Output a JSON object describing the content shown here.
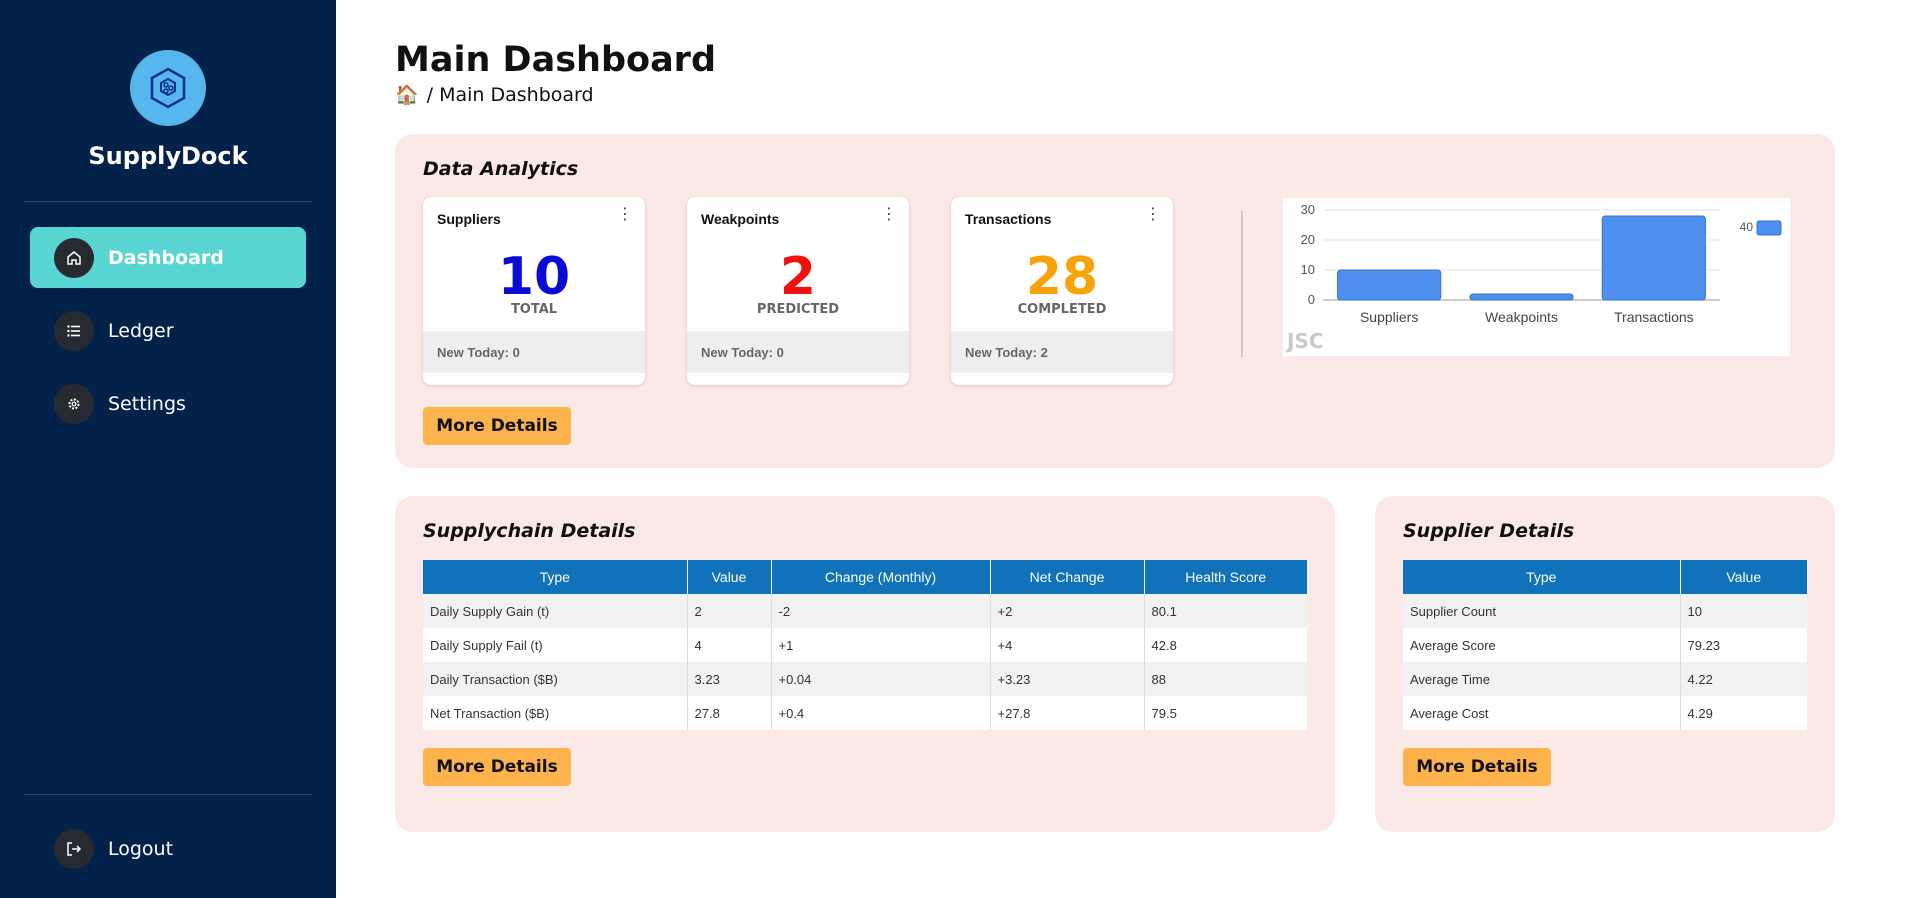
{
  "app": {
    "name": "SupplyDock"
  },
  "nav": {
    "items": [
      {
        "label": "Dashboard",
        "icon": "home-icon",
        "active": true
      },
      {
        "label": "Ledger",
        "icon": "list-icon",
        "active": false
      },
      {
        "label": "Settings",
        "icon": "gear-icon",
        "active": false
      }
    ],
    "logout": {
      "label": "Logout",
      "icon": "logout-icon"
    }
  },
  "page": {
    "title": "Main Dashboard",
    "breadcrumb": "/ Main Dashboard",
    "breadcrumb_icon": "🏠"
  },
  "analytics": {
    "title": "Data Analytics",
    "cards": [
      {
        "title": "Suppliers",
        "value": "10",
        "label": "TOTAL",
        "footer": "New Today: 0",
        "color": "#0b0bd6"
      },
      {
        "title": "Weakpoints",
        "value": "2",
        "label": "PREDICTED",
        "footer": "New Today: 0",
        "color": "#f01111"
      },
      {
        "title": "Transactions",
        "value": "28",
        "label": "COMPLETED",
        "footer": "New Today: 2",
        "color": "#f7a30c"
      }
    ],
    "more_button": "More Details"
  },
  "chart_data": {
    "type": "bar",
    "categories": [
      "Suppliers",
      "Weakpoints",
      "Transactions"
    ],
    "series": [
      {
        "name": "40",
        "values": [
          10,
          2,
          28
        ],
        "color": "#4f8ff0"
      }
    ],
    "ylim": [
      0,
      30
    ],
    "yticks": [
      "0",
      "10",
      "20",
      "30"
    ],
    "grid": true,
    "legend": "top-right",
    "watermark": "JSC"
  },
  "supplychain": {
    "title": "Supplychain Details",
    "columns": [
      "Type",
      "Value",
      "Change (Monthly)",
      "Net Change",
      "Health Score"
    ],
    "rows": [
      [
        "Daily Supply Gain (t)",
        "2",
        "-2",
        "+2",
        "80.1"
      ],
      [
        "Daily Supply Fail (t)",
        "4",
        "+1",
        "+4",
        "42.8"
      ],
      [
        "Daily Transaction ($B)",
        "3.23",
        "+0.04",
        "+3.23",
        "88"
      ],
      [
        "Net Transaction ($B)",
        "27.8",
        "+0.4",
        "+27.8",
        "79.5"
      ]
    ],
    "more_button": "More Details"
  },
  "supplier": {
    "title": "Supplier Details",
    "columns": [
      "Type",
      "Value"
    ],
    "rows": [
      [
        "Supplier Count",
        "10"
      ],
      [
        "Average Score",
        "79.23"
      ],
      [
        "Average Time",
        "4.22"
      ],
      [
        "Average Cost",
        "4.29"
      ]
    ],
    "more_button": "More Details"
  },
  "colors": {
    "sidebar": "#03224a",
    "active_nav": "#58d5d3",
    "panel": "#fbe9e8",
    "button": "#fdb34c",
    "table_header": "#0f72ba"
  }
}
